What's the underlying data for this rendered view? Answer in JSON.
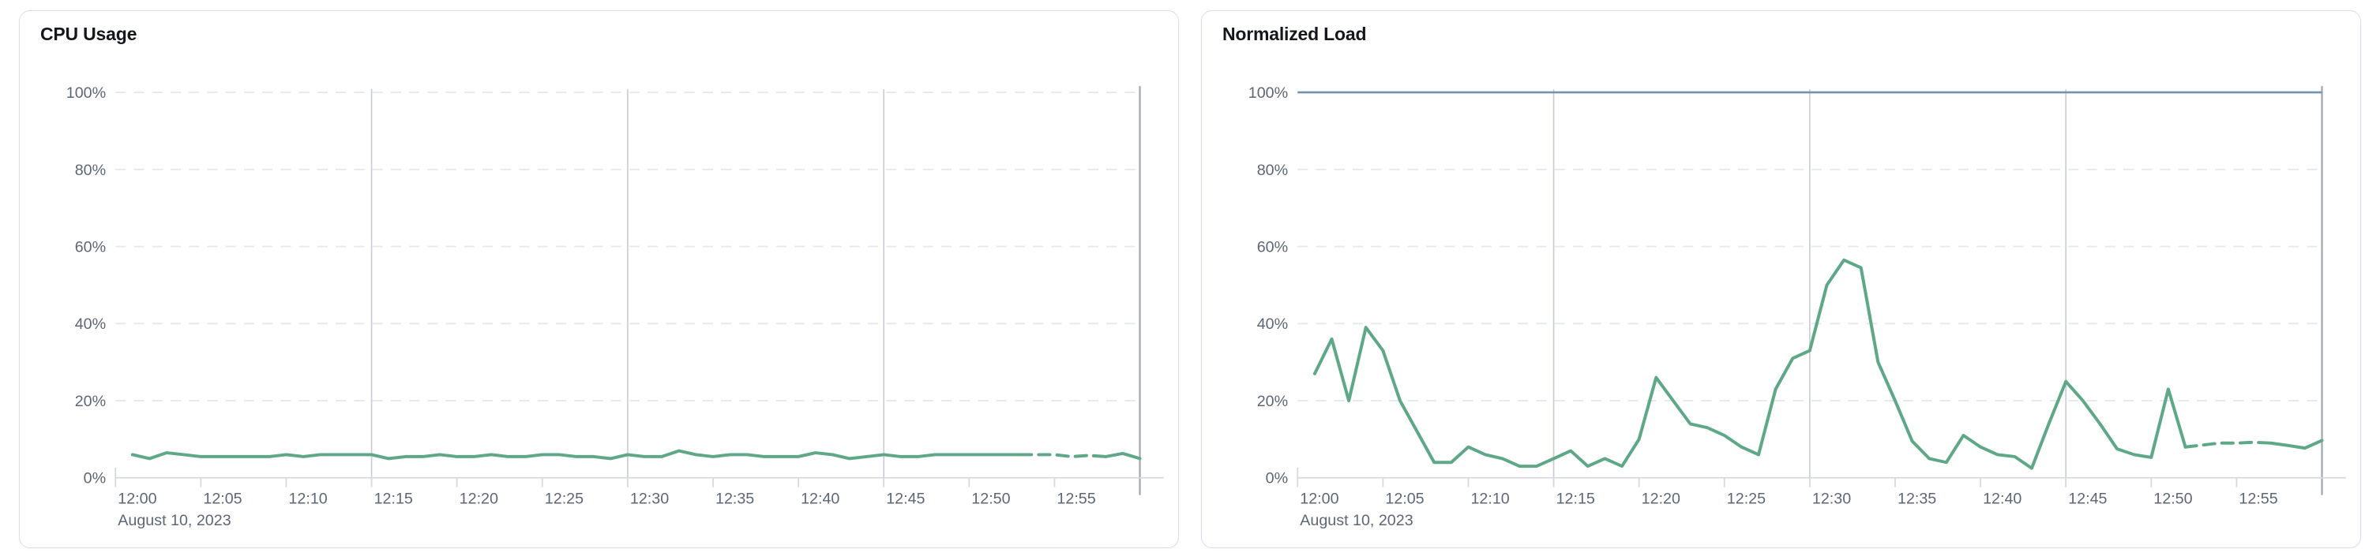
{
  "page": {
    "background": "#ffffff",
    "palette": {
      "series_green": "#5fa887",
      "limit_blue": "#7292b2",
      "grid_dashed": "#e7e9f0",
      "axis_line": "#d6d9e0",
      "v_gridline": "#c8ccd4",
      "end_line": "#a1a7b0",
      "tick_label": "#5d6675",
      "title_color": "#15171c",
      "card_border": "#d9dee8"
    }
  },
  "chart_data": [
    {
      "id": "cpu-usage",
      "type": "line",
      "title": "CPU Usage",
      "unit": "%",
      "date_label": "August 10, 2023",
      "x_axis_labels": [
        "12:00",
        "12:05",
        "12:10",
        "12:15",
        "12:20",
        "12:25",
        "12:30",
        "12:35",
        "12:40",
        "12:45",
        "12:50",
        "12:55"
      ],
      "y_axis_labels": [
        "0%",
        "20%",
        "40%",
        "60%",
        "80%",
        "100%"
      ],
      "y_ticks": [
        0,
        20,
        40,
        60,
        80,
        100
      ],
      "ylim": [
        0,
        100
      ],
      "x_range_minutes": [
        0,
        60
      ],
      "x_start_time": "12:00",
      "x_end_time": "13:00",
      "v_gridline_minutes": [
        15,
        30,
        45
      ],
      "end_line_minute": 60,
      "grid": "on",
      "legend": "none",
      "series": [
        {
          "name": "cpu-usage",
          "color_key": "series_green",
          "x_minutes": [
            1,
            2,
            3,
            4,
            5,
            6,
            7,
            8,
            9,
            10,
            11,
            12,
            13,
            14,
            15,
            16,
            17,
            18,
            19,
            20,
            21,
            22,
            23,
            24,
            25,
            26,
            27,
            28,
            29,
            30,
            31,
            32,
            33,
            34,
            35,
            36,
            37,
            38,
            39,
            40,
            41,
            42,
            43,
            44,
            45,
            46,
            47,
            48,
            49,
            50,
            51,
            52,
            53,
            54,
            55,
            56,
            57,
            58,
            59,
            60
          ],
          "values": [
            6,
            5,
            6.5,
            6,
            5.5,
            5.5,
            5.5,
            5.5,
            5.5,
            6,
            5.5,
            6,
            6,
            6,
            6,
            5,
            5.5,
            5.5,
            6,
            5.5,
            5.5,
            6,
            5.5,
            5.5,
            6,
            6,
            5.5,
            5.5,
            5,
            6,
            5.5,
            5.5,
            7,
            6,
            5.5,
            6,
            6,
            5.5,
            5.5,
            5.5,
            6.5,
            6,
            5,
            5.5,
            6,
            5.5,
            5.5,
            6,
            6,
            6,
            6,
            6,
            6,
            6,
            6,
            5.5,
            5.8,
            5.5,
            6.3,
            5
          ],
          "dashed_from_minute": 53,
          "dashed_to_minute": 58
        }
      ]
    },
    {
      "id": "normalized-load",
      "type": "line",
      "title": "Normalized Load",
      "unit": "%",
      "date_label": "August 10, 2023",
      "x_axis_labels": [
        "12:00",
        "12:05",
        "12:10",
        "12:15",
        "12:20",
        "12:25",
        "12:30",
        "12:35",
        "12:40",
        "12:45",
        "12:50",
        "12:55"
      ],
      "y_axis_labels": [
        "0%",
        "20%",
        "40%",
        "60%",
        "80%",
        "100%"
      ],
      "y_ticks": [
        0,
        20,
        40,
        60,
        80,
        100
      ],
      "ylim": [
        0,
        100
      ],
      "x_range_minutes": [
        0,
        60
      ],
      "x_start_time": "12:00",
      "x_end_time": "13:00",
      "v_gridline_minutes": [
        15,
        30,
        45
      ],
      "end_line_minute": 60,
      "grid": "on",
      "legend": "none",
      "series": [
        {
          "name": "limit-100-percent",
          "color_key": "limit_blue",
          "constant_value": 100
        },
        {
          "name": "normalized-load",
          "color_key": "series_green",
          "x_minutes": [
            1,
            2,
            3,
            4,
            5,
            6,
            7,
            8,
            9,
            10,
            11,
            12,
            13,
            14,
            15,
            16,
            17,
            18,
            19,
            20,
            21,
            22,
            23,
            24,
            25,
            26,
            27,
            28,
            29,
            30,
            31,
            32,
            33,
            34,
            35,
            36,
            37,
            38,
            39,
            40,
            41,
            42,
            43,
            44,
            45,
            46,
            47,
            48,
            49,
            50,
            51,
            52,
            53,
            54,
            55,
            56,
            57,
            58,
            59,
            60
          ],
          "values": [
            27,
            36,
            20,
            39,
            33,
            20,
            12,
            4,
            4,
            8,
            6,
            5,
            3,
            3,
            5,
            7,
            3,
            5,
            3,
            10,
            26,
            20,
            14,
            13,
            11,
            8,
            6,
            23,
            31,
            33,
            50,
            56.5,
            54.5,
            30,
            20,
            9.5,
            5,
            4,
            11,
            8,
            6,
            5.5,
            2.5,
            14,
            25,
            20,
            14,
            7.5,
            6,
            5.3,
            23,
            8,
            8.5,
            9,
            9,
            9.2,
            9,
            8.4,
            7.7,
            9.7
          ],
          "dashed_from_minute": 52,
          "dashed_to_minute": 57
        }
      ]
    }
  ]
}
